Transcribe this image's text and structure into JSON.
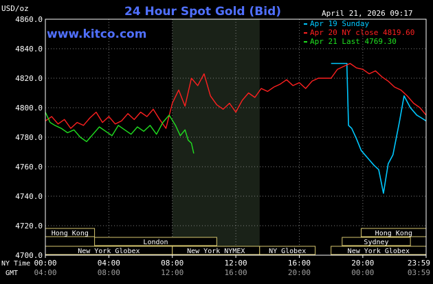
{
  "chart_data": {
    "type": "line",
    "title": "24 Hour Spot Gold (Bid)",
    "unit_label": "USD/oz",
    "brand": "www.kitco.com",
    "date_label": "April 21, 2026 09:17",
    "ylim": [
      4700,
      4860
    ],
    "y_ticks": [
      "4860.0",
      "4840.0",
      "4820.0",
      "4800.0",
      "4780.0",
      "4760.0",
      "4740.0",
      "4720.0",
      "4700.0"
    ],
    "x_row_ny_label": "NY Time",
    "x_row_gmt_label": "GMT",
    "x_ticks_ny": [
      "00:00",
      "04:00",
      "08:00",
      "12:00",
      "16:00",
      "20:00",
      "23:59"
    ],
    "x_ticks_gmt": [
      "04:00",
      "08:00",
      "12:00",
      "16:00",
      "20:00",
      "00:00",
      "03:59"
    ],
    "legend": [
      {
        "label": "Apr 19 Sunday",
        "color": "#00c8ff"
      },
      {
        "label": "Apr 20 NY close 4819.60",
        "color": "#ff2020"
      },
      {
        "label": "Apr 21 Last 4769.30",
        "color": "#20e020"
      }
    ],
    "colors": {
      "background": "#000000",
      "frame": "#ffffff",
      "grid": "#808080",
      "title": "#5070ff",
      "brand": "#5070ff",
      "shade": "#1a2218",
      "session_box": "#d8c870",
      "session_text": "#ffffff"
    },
    "shaded_range_hours": [
      8,
      13.5
    ],
    "series": [
      {
        "name": "Apr 19 Sunday",
        "color": "#00c8ff",
        "x": [
          18.0,
          19.0,
          19.0,
          19.1,
          19.3,
          19.6,
          19.9,
          20.3,
          20.7,
          21.0,
          21.3,
          21.6,
          21.9,
          22.3,
          22.6,
          23.0,
          23.4,
          23.7,
          23.99
        ],
        "y": [
          4830,
          4830,
          4827,
          4788,
          4786,
          4779,
          4771,
          4766,
          4761,
          4758,
          4742,
          4762,
          4768,
          4790,
          4808,
          4800,
          4795,
          4793,
          4791
        ]
      },
      {
        "name": "Apr 20 NY close 4819.60",
        "color": "#ff2020",
        "x": [
          0,
          0.4,
          0.8,
          1.2,
          1.6,
          2.0,
          2.4,
          2.8,
          3.2,
          3.6,
          4.0,
          4.4,
          4.8,
          5.2,
          5.6,
          6.0,
          6.4,
          6.8,
          7.2,
          7.6,
          8.0,
          8.4,
          8.8,
          9.2,
          9.6,
          10.0,
          10.4,
          10.8,
          11.2,
          11.6,
          12.0,
          12.4,
          12.8,
          13.2,
          13.6,
          14.0,
          14.4,
          14.8,
          15.2,
          15.6,
          16.0,
          16.4,
          16.8,
          17.2,
          17.6,
          18.0,
          18.4,
          18.8,
          19.2,
          19.6,
          20.0,
          20.4,
          20.8,
          21.2,
          21.6,
          22.0,
          22.4,
          22.8,
          23.2,
          23.6,
          23.99
        ],
        "y": [
          4791,
          4794,
          4789,
          4792,
          4786,
          4790,
          4788,
          4793,
          4797,
          4790,
          4794,
          4789,
          4791,
          4796,
          4792,
          4797,
          4794,
          4799,
          4792,
          4786,
          4803,
          4812,
          4801,
          4820,
          4815,
          4823,
          4808,
          4802,
          4799,
          4803,
          4797,
          4805,
          4810,
          4807,
          4813,
          4811,
          4814,
          4816,
          4819,
          4815,
          4817,
          4813,
          4818,
          4820,
          4820,
          4820,
          4826,
          4828,
          4830,
          4827,
          4826,
          4823,
          4825,
          4821,
          4818,
          4814,
          4812,
          4808,
          4803,
          4800,
          4795
        ]
      },
      {
        "name": "Apr 21 Last 4769.30",
        "color": "#20e020",
        "x": [
          0,
          0.3,
          0.6,
          1.0,
          1.4,
          1.8,
          2.2,
          2.6,
          3.0,
          3.4,
          3.8,
          4.2,
          4.6,
          5.0,
          5.4,
          5.8,
          6.2,
          6.6,
          7.0,
          7.4,
          7.8,
          8.2,
          8.5,
          8.8,
          9.0,
          9.2,
          9.35
        ],
        "y": [
          4797,
          4790,
          4788,
          4786,
          4783,
          4785,
          4780,
          4777,
          4782,
          4787,
          4784,
          4781,
          4788,
          4785,
          4782,
          4787,
          4784,
          4788,
          4782,
          4790,
          4795,
          4788,
          4781,
          4785,
          4778,
          4776,
          4769
        ]
      }
    ],
    "sessions": [
      {
        "label": "Hong Kong",
        "row": 0,
        "start": 0,
        "end": 3.1
      },
      {
        "label": "Hong Kong",
        "row": 0,
        "start": 19.9,
        "end": 23.99
      },
      {
        "label": "London",
        "row": 1,
        "start": 3.1,
        "end": 10.8
      },
      {
        "label": "Sydney",
        "row": 1,
        "start": 18.7,
        "end": 23.0
      },
      {
        "label": "New York Globex",
        "row": 2,
        "start": 0,
        "end": 8.0
      },
      {
        "label": "New York NYMEX",
        "row": 2,
        "start": 8.0,
        "end": 13.5
      },
      {
        "label": "NY Globex",
        "row": 2,
        "start": 13.5,
        "end": 17.0
      },
      {
        "label": "New York Globex",
        "row": 2,
        "start": 18.0,
        "end": 23.99
      }
    ],
    "grid": true
  }
}
